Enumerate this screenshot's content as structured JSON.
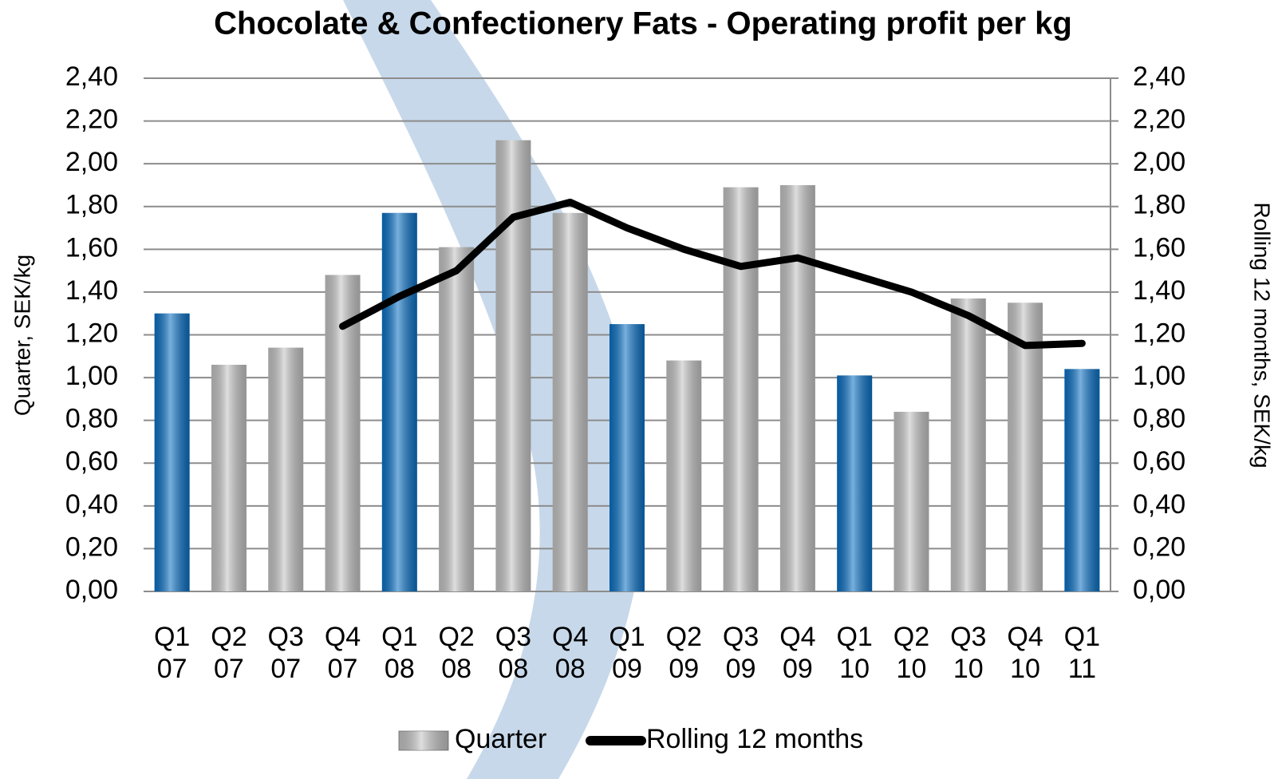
{
  "chart_data": {
    "type": "bar_line",
    "title": "Chocolate & Confectionery Fats - Operating profit per kg",
    "y_label": "Quarter,  SEK/kg",
    "y2_label": "Rolling 12 months, SEK/kg",
    "categories": [
      [
        "Q1",
        "07"
      ],
      [
        "Q2",
        "07"
      ],
      [
        "Q3",
        "07"
      ],
      [
        "Q4",
        "07"
      ],
      [
        "Q1",
        "08"
      ],
      [
        "Q2",
        "08"
      ],
      [
        "Q3",
        "08"
      ],
      [
        "Q4",
        "08"
      ],
      [
        "Q1",
        "09"
      ],
      [
        "Q2",
        "09"
      ],
      [
        "Q3",
        "09"
      ],
      [
        "Q4",
        "09"
      ],
      [
        "Q1",
        "10"
      ],
      [
        "Q2",
        "10"
      ],
      [
        "Q3",
        "10"
      ],
      [
        "Q4",
        "10"
      ],
      [
        "Q1",
        "11"
      ]
    ],
    "series": [
      {
        "name": "Quarter",
        "type": "bar",
        "color": "#c4c4c4",
        "colors": [
          "#0a70c4",
          "#c4c4c4",
          "#c4c4c4",
          "#c4c4c4",
          "#0a70c4",
          "#c4c4c4",
          "#c4c4c4",
          "#c4c4c4",
          "#0a70c4",
          "#c4c4c4",
          "#c4c4c4",
          "#c4c4c4",
          "#0a70c4",
          "#c4c4c4",
          "#c4c4c4",
          "#c4c4c4",
          "#0a70c4"
        ],
        "values": [
          1.3,
          1.06,
          1.14,
          1.48,
          1.77,
          1.61,
          2.11,
          1.77,
          1.25,
          1.08,
          1.89,
          1.9,
          1.01,
          0.84,
          1.37,
          1.35,
          1.04
        ]
      },
      {
        "name": "Rolling 12 months",
        "type": "line",
        "axis": "y2",
        "color": "#000000",
        "values": [
          null,
          null,
          null,
          1.24,
          1.38,
          1.5,
          1.75,
          1.82,
          1.7,
          1.6,
          1.52,
          1.56,
          1.48,
          1.4,
          1.29,
          1.15,
          1.16
        ]
      }
    ],
    "ylim": [
      0,
      2.4
    ],
    "yticks": [
      {
        "value": 0,
        "label": "0,00"
      },
      {
        "value": 0.2,
        "label": "0,20"
      },
      {
        "value": 0.4,
        "label": "0,40"
      },
      {
        "value": 0.6,
        "label": "0,60"
      },
      {
        "value": 0.8,
        "label": "0,80"
      },
      {
        "value": 1.0,
        "label": "1,00"
      },
      {
        "value": 1.2,
        "label": "1,20"
      },
      {
        "value": 1.4,
        "label": "1,40"
      },
      {
        "value": 1.6,
        "label": "1,60"
      },
      {
        "value": 1.8,
        "label": "1,80"
      },
      {
        "value": 2.0,
        "label": "2,00"
      },
      {
        "value": 2.2,
        "label": "2,20"
      },
      {
        "value": 2.4,
        "label": "2,40"
      }
    ],
    "y2lim": [
      0,
      2.4
    ],
    "y2ticks": [
      {
        "value": 0,
        "label": "0,00"
      },
      {
        "value": 0.2,
        "label": "0,20"
      },
      {
        "value": 0.4,
        "label": "0,40"
      },
      {
        "value": 0.6,
        "label": "0,60"
      },
      {
        "value": 0.8,
        "label": "0,80"
      },
      {
        "value": 1.0,
        "label": "1,00"
      },
      {
        "value": 1.2,
        "label": "1,20"
      },
      {
        "value": 1.4,
        "label": "1,40"
      },
      {
        "value": 1.6,
        "label": "1,60"
      },
      {
        "value": 1.8,
        "label": "1,80"
      },
      {
        "value": 2.0,
        "label": "2,00"
      },
      {
        "value": 2.2,
        "label": "2,20"
      },
      {
        "value": 2.4,
        "label": "2,40"
      }
    ],
    "grid": true,
    "legend": "bottom"
  }
}
